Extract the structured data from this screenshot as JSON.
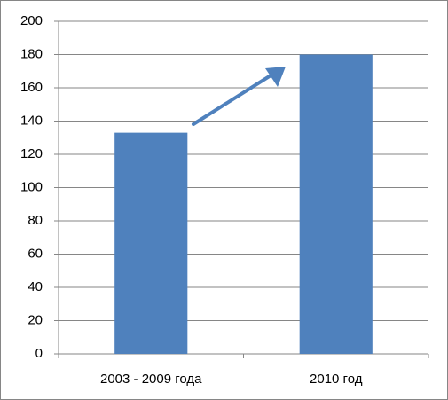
{
  "chart_data": {
    "type": "bar",
    "categories": [
      "2003 - 2009 года",
      "2010 год"
    ],
    "values": [
      133,
      180
    ],
    "color": "#4f81bd",
    "ylim": [
      0,
      200
    ],
    "yticks": [
      0,
      20,
      40,
      60,
      80,
      100,
      120,
      140,
      160,
      180,
      200
    ],
    "grid": true
  }
}
